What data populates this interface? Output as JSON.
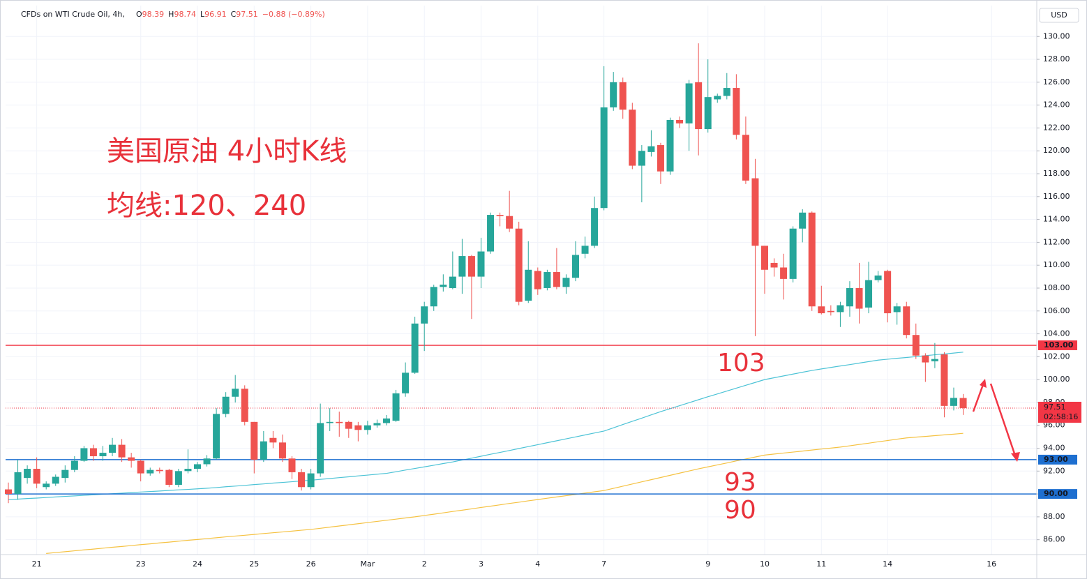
{
  "chart_data": {
    "type": "candlestick",
    "header": {
      "symbol": "CFDs on WTI Crude Oil, 4h,",
      "ohlc": [
        {
          "key": "O",
          "value": 98.39
        },
        {
          "key": "H",
          "value": 98.74
        },
        {
          "key": "L",
          "value": 96.91
        },
        {
          "key": "C",
          "value": 97.51
        }
      ],
      "change": "−0.88 (−0.89%)"
    },
    "currency": "USD",
    "title": "美国原油 4小时K线",
    "subtitle": "均线:120、240",
    "annotations": [
      "103",
      "93",
      "90"
    ],
    "up_color": "#26a69a",
    "down_color": "#ef5350",
    "categories": [
      null,
      null,
      null,
      "21",
      null,
      null,
      null,
      null,
      null,
      null,
      null,
      null,
      null,
      null,
      "23",
      null,
      null,
      null,
      null,
      null,
      "24",
      null,
      null,
      null,
      null,
      null,
      "25",
      null,
      null,
      null,
      null,
      null,
      "26",
      null,
      null,
      null,
      null,
      null,
      "Mar",
      null,
      null,
      null,
      null,
      null,
      "2",
      null,
      null,
      null,
      null,
      null,
      "3",
      null,
      null,
      null,
      null,
      null,
      "4",
      null,
      null,
      null,
      null,
      null,
      null,
      "7",
      null,
      null,
      null,
      null,
      null,
      null,
      null,
      null,
      null,
      null,
      "9",
      null,
      null,
      null,
      null,
      null,
      "10",
      null,
      null,
      null,
      null,
      null,
      "11",
      null,
      null,
      null,
      null,
      null,
      null,
      "14",
      null,
      null,
      null,
      null,
      null,
      null,
      null,
      null,
      null,
      null,
      "16"
    ],
    "open": [
      90.4,
      90.0,
      91.4,
      92.2,
      90.6,
      90.9,
      91.4,
      92.1,
      92.9,
      94.0,
      93.3,
      93.6,
      94.3,
      93.2,
      92.9,
      91.8,
      92.1,
      92.1,
      90.8,
      92.0,
      92.2,
      92.6,
      93.1,
      97.0,
      98.5,
      99.2,
      96.3,
      93.0,
      94.9,
      94.5,
      93.1,
      91.9,
      90.6,
      91.8,
      96.2,
      96.3,
      96.3,
      96.0,
      95.6,
      96.0,
      96.2,
      96.4,
      98.8,
      100.6,
      104.9,
      106.4,
      108.1,
      108.0,
      109.0,
      110.8,
      109.0,
      111.2,
      114.4,
      114.3,
      113.2,
      106.9,
      109.5,
      108.0,
      109.4,
      108.1,
      108.9,
      111.0,
      111.7,
      115.0,
      123.8,
      126.0,
      123.6,
      118.7,
      119.9,
      120.5,
      118.2,
      122.7,
      122.4,
      126.0,
      121.9,
      124.5,
      124.8,
      125.5,
      121.4,
      117.6,
      111.7,
      110.2,
      109.8,
      108.8,
      113.2,
      114.6,
      106.4,
      106.0,
      105.9,
      106.4,
      108.0,
      106.3,
      108.7,
      109.5,
      105.9,
      106.4,
      103.9,
      102.1,
      101.6,
      102.2,
      97.7,
      98.39,
      null,
      null,
      null
    ],
    "high": [
      91.0,
      93.0,
      92.5,
      93.2,
      91.1,
      91.7,
      92.5,
      93.3,
      94.2,
      94.3,
      94.2,
      94.9,
      94.8,
      93.6,
      93.0,
      92.3,
      92.3,
      92.2,
      92.2,
      93.9,
      92.8,
      93.4,
      97.5,
      98.9,
      100.4,
      99.5,
      96.3,
      95.5,
      95.5,
      95.2,
      93.3,
      92.2,
      92.2,
      97.9,
      97.5,
      97.2,
      96.4,
      96.3,
      96.4,
      96.5,
      96.9,
      99.1,
      101.5,
      105.5,
      106.8,
      108.3,
      109.2,
      111.2,
      112.3,
      110.9,
      112.4,
      114.6,
      114.6,
      116.5,
      113.8,
      112.1,
      109.8,
      109.6,
      111.5,
      109.2,
      112.1,
      112.5,
      116.0,
      127.4,
      126.9,
      126.4,
      124.2,
      120.5,
      121.8,
      120.7,
      122.9,
      123.0,
      126.2,
      129.4,
      128.0,
      125.0,
      126.8,
      126.7,
      123.0,
      119.3,
      111.7,
      110.6,
      111.0,
      113.4,
      114.9,
      114.7,
      108.2,
      106.5,
      106.8,
      108.6,
      110.2,
      110.3,
      109.5,
      109.6,
      106.7,
      106.8,
      104.9,
      102.3,
      103.2,
      102.4,
      99.3,
      98.74,
      null,
      null,
      null
    ],
    "low": [
      89.2,
      89.5,
      90.9,
      90.5,
      90.4,
      90.7,
      91.0,
      91.9,
      92.8,
      92.9,
      92.9,
      93.3,
      92.8,
      92.3,
      91.1,
      91.6,
      91.8,
      90.6,
      90.6,
      91.8,
      91.9,
      92.4,
      93.0,
      96.7,
      98.0,
      96.0,
      91.8,
      92.8,
      94.0,
      92.8,
      91.3,
      90.3,
      90.4,
      91.5,
      95.5,
      95.0,
      94.9,
      94.6,
      95.2,
      95.8,
      96.0,
      96.3,
      98.5,
      100.5,
      102.5,
      106.0,
      107.7,
      107.9,
      107.5,
      105.3,
      108.0,
      111.0,
      113.4,
      112.9,
      106.5,
      106.7,
      107.4,
      107.8,
      107.9,
      107.5,
      108.6,
      110.6,
      111.5,
      114.8,
      123.5,
      122.8,
      118.4,
      115.5,
      119.5,
      117.1,
      117.9,
      122.0,
      120.0,
      119.6,
      121.6,
      124.2,
      124.5,
      121.0,
      117.1,
      103.8,
      107.5,
      109.0,
      107.0,
      108.5,
      112.0,
      106.0,
      105.7,
      105.6,
      104.6,
      105.5,
      104.9,
      105.8,
      108.5,
      105.0,
      104.8,
      103.6,
      101.8,
      99.8,
      101.0,
      96.7,
      97.3,
      96.91,
      null,
      null,
      null
    ],
    "close": [
      90.0,
      91.9,
      92.2,
      90.9,
      90.9,
      91.5,
      92.1,
      92.9,
      94.0,
      93.3,
      93.6,
      94.3,
      93.2,
      92.9,
      91.8,
      92.1,
      92.0,
      90.8,
      92.0,
      92.2,
      92.6,
      93.1,
      97.0,
      98.5,
      99.2,
      96.3,
      93.0,
      94.6,
      94.5,
      93.1,
      91.9,
      90.6,
      91.8,
      96.2,
      96.3,
      96.2,
      95.7,
      95.6,
      96.0,
      96.2,
      96.6,
      98.8,
      100.6,
      104.9,
      106.4,
      108.1,
      108.3,
      109.0,
      110.8,
      109.0,
      111.2,
      114.4,
      114.3,
      113.2,
      106.8,
      109.6,
      107.9,
      109.4,
      108.1,
      108.9,
      110.9,
      111.7,
      115.0,
      123.8,
      126.0,
      123.6,
      118.7,
      120.0,
      120.4,
      118.2,
      122.7,
      122.4,
      125.9,
      121.9,
      124.7,
      124.8,
      125.5,
      121.4,
      117.4,
      111.7,
      109.6,
      109.8,
      108.8,
      113.2,
      114.6,
      106.4,
      105.8,
      105.9,
      106.5,
      108.0,
      106.2,
      108.7,
      109.1,
      105.8,
      106.4,
      103.9,
      102.1,
      101.5,
      101.8,
      97.7,
      98.4,
      97.51,
      null,
      null,
      null
    ],
    "overlays": [
      {
        "color": "#4dc3d6",
        "values": [
          89.5,
          89.55,
          89.6,
          89.64,
          89.69,
          89.74,
          89.79,
          89.83,
          89.88,
          89.93,
          89.98,
          90.02,
          90.07,
          90.12,
          90.17,
          90.21,
          90.26,
          90.31,
          90.36,
          90.4,
          90.45,
          90.5,
          90.56,
          90.63,
          90.69,
          90.75,
          90.82,
          90.88,
          90.95,
          91.01,
          91.07,
          91.14,
          91.2,
          91.28,
          91.35,
          91.43,
          91.5,
          91.58,
          91.65,
          91.73,
          91.8,
          91.94,
          92.09,
          92.23,
          92.37,
          92.51,
          92.66,
          92.8,
          92.97,
          93.13,
          93.3,
          93.47,
          93.63,
          93.8,
          93.97,
          94.14,
          94.31,
          94.48,
          94.65,
          94.82,
          94.99,
          95.16,
          95.33,
          95.5,
          95.78,
          96.07,
          96.35,
          96.63,
          96.92,
          97.2,
          97.46,
          97.72,
          97.98,
          98.24,
          98.5,
          98.75,
          99.0,
          99.25,
          99.5,
          99.75,
          100.0,
          100.16,
          100.32,
          100.48,
          100.64,
          100.8,
          100.93,
          101.06,
          101.19,
          101.31,
          101.44,
          101.57,
          101.7,
          101.78,
          101.86,
          101.93,
          102.01,
          102.09,
          102.17,
          102.24,
          102.32,
          102.4,
          null,
          null,
          null
        ]
      },
      {
        "color": "#f5c242",
        "values": [
          null,
          null,
          null,
          null,
          84.8,
          84.88,
          84.95,
          85.03,
          85.11,
          85.18,
          85.26,
          85.34,
          85.41,
          85.49,
          85.57,
          85.64,
          85.72,
          85.79,
          85.87,
          85.95,
          86.02,
          86.1,
          86.17,
          86.25,
          86.32,
          86.39,
          86.46,
          86.54,
          86.61,
          86.68,
          86.75,
          86.83,
          86.9,
          87.0,
          87.1,
          87.2,
          87.3,
          87.4,
          87.5,
          87.6,
          87.7,
          87.8,
          87.9,
          88.0,
          88.12,
          88.23,
          88.35,
          88.47,
          88.58,
          88.7,
          88.82,
          88.93,
          89.05,
          89.17,
          89.28,
          89.4,
          89.51,
          89.63,
          89.74,
          89.85,
          89.96,
          90.08,
          90.19,
          90.3,
          90.49,
          90.68,
          90.87,
          91.06,
          91.25,
          91.44,
          91.63,
          91.82,
          92.01,
          92.2,
          92.37,
          92.54,
          92.71,
          92.89,
          93.06,
          93.23,
          93.4,
          93.49,
          93.58,
          93.66,
          93.75,
          93.84,
          93.93,
          94.01,
          94.1,
          94.21,
          94.33,
          94.44,
          94.56,
          94.67,
          94.79,
          94.9,
          94.97,
          95.03,
          95.1,
          95.17,
          95.23,
          95.3,
          null,
          null,
          null
        ]
      }
    ],
    "levels": [
      {
        "value": 103,
        "label": "103.00",
        "color": "#f23645"
      },
      {
        "value": 93,
        "label": "93.00",
        "color": "#1e6fd0"
      },
      {
        "value": 90,
        "label": "90.00",
        "color": "#1e6fd0"
      }
    ],
    "last_price": {
      "value": 97.51,
      "label": "97.51",
      "countdown": "02:58:16",
      "color": "#f23645"
    },
    "ylim": [
      84.7,
      132.7
    ],
    "yticks": [
      {
        "value": 86,
        "label": "86.00"
      },
      {
        "value": 88,
        "label": "88.00"
      },
      {
        "value": 90,
        "label": "90.00"
      },
      {
        "value": 92,
        "label": "92.00"
      },
      {
        "value": 94,
        "label": "94.00"
      },
      {
        "value": 96,
        "label": "96.00"
      },
      {
        "value": 98,
        "label": "98.00"
      },
      {
        "value": 100,
        "label": "100.00"
      },
      {
        "value": 102,
        "label": "102.00"
      },
      {
        "value": 104,
        "label": "104.00"
      },
      {
        "value": 106,
        "label": "106.00"
      },
      {
        "value": 108,
        "label": "108.00"
      },
      {
        "value": 110,
        "label": "110.00"
      },
      {
        "value": 112,
        "label": "112.00"
      },
      {
        "value": 114,
        "label": "114.00"
      },
      {
        "value": 116,
        "label": "116.00"
      },
      {
        "value": 118,
        "label": "118.00"
      },
      {
        "value": 120,
        "label": "120.00"
      },
      {
        "value": 122,
        "label": "122.00"
      },
      {
        "value": 124,
        "label": "124.00"
      },
      {
        "value": 126,
        "label": "126.00"
      },
      {
        "value": 128,
        "label": "128.00"
      },
      {
        "value": 130,
        "label": "130.00"
      }
    ],
    "grid": true
  }
}
